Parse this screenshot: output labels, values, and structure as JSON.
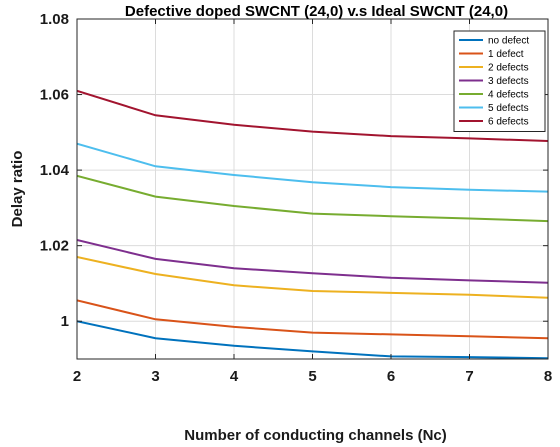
{
  "chart_data": {
    "type": "line",
    "title": "Defective doped SWCNT (24,0) v.s Ideal SWCNT (24,0)",
    "xlabel": "Number of conducting channels (Nc)",
    "ylabel": "Delay ratio",
    "xlim": [
      2,
      8
    ],
    "ylim": [
      0.99,
      1.08
    ],
    "xticks": [
      2,
      3,
      4,
      5,
      6,
      7,
      8
    ],
    "yticks": [
      1,
      1.02,
      1.04,
      1.06,
      1.08
    ],
    "ytick_labels": [
      "1",
      "1.02",
      "1.04",
      "1.06",
      "1.08"
    ],
    "grid": true,
    "legend_position": "top-right",
    "x": [
      2,
      3,
      4,
      5,
      6,
      7,
      8
    ],
    "series": [
      {
        "name": "no defect",
        "color": "#0072BD",
        "values": [
          1.0,
          0.9955,
          0.9935,
          0.992,
          0.9907,
          0.9905,
          0.9902
        ]
      },
      {
        "name": "1 defect",
        "color": "#D95319",
        "values": [
          1.0055,
          1.0005,
          0.9985,
          0.997,
          0.9965,
          0.996,
          0.9955
        ]
      },
      {
        "name": "2 defects",
        "color": "#EDB120",
        "values": [
          1.017,
          1.0125,
          1.0095,
          1.008,
          1.0075,
          1.007,
          1.0062
        ]
      },
      {
        "name": "3 defects",
        "color": "#7E2F8E",
        "values": [
          1.0215,
          1.0165,
          1.014,
          1.0127,
          1.0115,
          1.0108,
          1.0102
        ]
      },
      {
        "name": "4 defects",
        "color": "#77AC30",
        "values": [
          1.0385,
          1.033,
          1.0305,
          1.0285,
          1.0278,
          1.0272,
          1.0265
        ]
      },
      {
        "name": "5 defects",
        "color": "#4DBEEE",
        "values": [
          1.047,
          1.041,
          1.0387,
          1.0368,
          1.0355,
          1.0348,
          1.0343
        ]
      },
      {
        "name": "6 defects",
        "color": "#A2142F",
        "values": [
          1.061,
          1.0545,
          1.052,
          1.0502,
          1.049,
          1.0484,
          1.0477
        ]
      }
    ]
  }
}
